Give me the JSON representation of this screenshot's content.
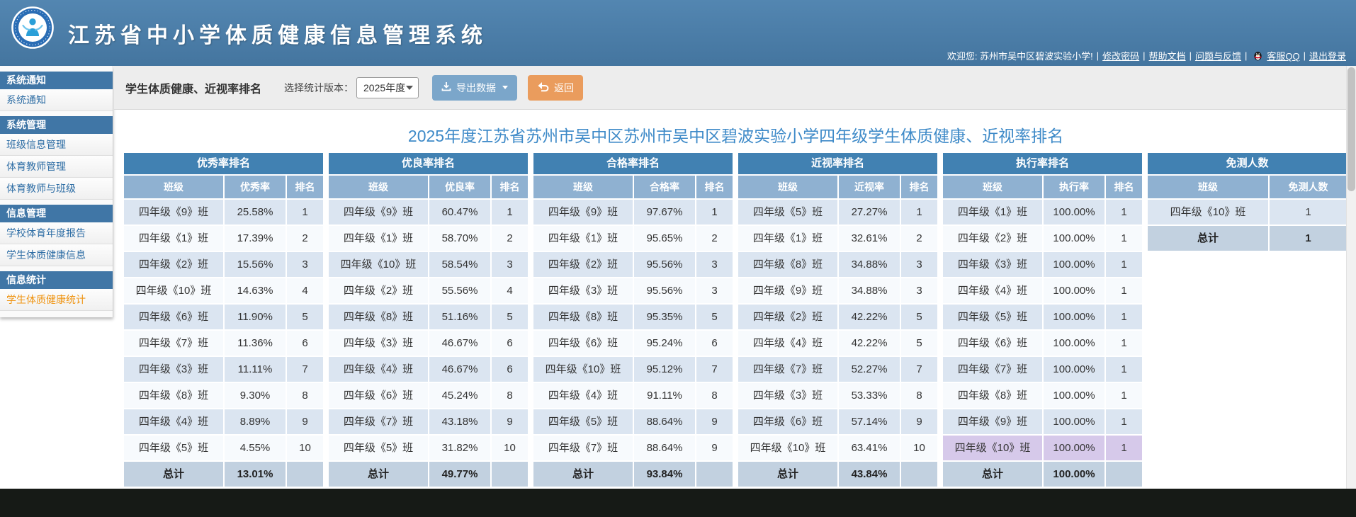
{
  "header": {
    "title": "江苏省中小学体质健康信息管理系统",
    "welcome_prefix": "欢迎您: 苏州市吴中区碧波实验小学!",
    "separator": "|",
    "links": [
      "修改密码",
      "帮助文档",
      "问题与反馈",
      "客服QQ",
      "退出登录"
    ]
  },
  "sidebar": {
    "sections": [
      {
        "header": "系统通知",
        "items": [
          {
            "label": "系统通知",
            "active": false
          }
        ]
      },
      {
        "header": "系统管理",
        "items": [
          {
            "label": "班级信息管理",
            "active": false
          },
          {
            "label": "体育教师管理",
            "active": false
          },
          {
            "label": "体育教师与班级",
            "active": false
          }
        ]
      },
      {
        "header": "信息管理",
        "items": [
          {
            "label": "学校体育年度报告",
            "active": false
          },
          {
            "label": "学生体质健康信息",
            "active": false
          }
        ]
      },
      {
        "header": "信息统计",
        "items": [
          {
            "label": "学生体质健康统计",
            "active": true
          }
        ]
      }
    ]
  },
  "toolbar": {
    "title": "学生体质健康、近视率排名",
    "version_label": "选择统计版本：",
    "version_value": "2025年度",
    "export_label": "导出数据",
    "back_label": "返回"
  },
  "main": {
    "title": "2025年度江苏省苏州市吴中区苏州市吴中区碧波实验小学四年级学生体质健康、近视率排名"
  },
  "tables": [
    {
      "key": "excellent-rate",
      "title": "优秀率排名",
      "columns": [
        "班级",
        "优秀率",
        "排名"
      ],
      "rows": [
        [
          "四年级《9》班",
          "25.58%",
          "1"
        ],
        [
          "四年级《1》班",
          "17.39%",
          "2"
        ],
        [
          "四年级《2》班",
          "15.56%",
          "3"
        ],
        [
          "四年级《10》班",
          "14.63%",
          "4"
        ],
        [
          "四年级《6》班",
          "11.90%",
          "5"
        ],
        [
          "四年级《7》班",
          "11.36%",
          "6"
        ],
        [
          "四年级《3》班",
          "11.11%",
          "7"
        ],
        [
          "四年级《8》班",
          "9.30%",
          "8"
        ],
        [
          "四年级《4》班",
          "8.89%",
          "9"
        ],
        [
          "四年级《5》班",
          "4.55%",
          "10"
        ]
      ],
      "total": [
        "总计",
        "13.01%",
        ""
      ]
    },
    {
      "key": "good-rate",
      "title": "优良率排名",
      "columns": [
        "班级",
        "优良率",
        "排名"
      ],
      "rows": [
        [
          "四年级《9》班",
          "60.47%",
          "1"
        ],
        [
          "四年级《1》班",
          "58.70%",
          "2"
        ],
        [
          "四年级《10》班",
          "58.54%",
          "3"
        ],
        [
          "四年级《2》班",
          "55.56%",
          "4"
        ],
        [
          "四年级《8》班",
          "51.16%",
          "5"
        ],
        [
          "四年级《3》班",
          "46.67%",
          "6"
        ],
        [
          "四年级《4》班",
          "46.67%",
          "6"
        ],
        [
          "四年级《6》班",
          "45.24%",
          "8"
        ],
        [
          "四年级《7》班",
          "43.18%",
          "9"
        ],
        [
          "四年级《5》班",
          "31.82%",
          "10"
        ]
      ],
      "total": [
        "总计",
        "49.77%",
        ""
      ]
    },
    {
      "key": "pass-rate",
      "title": "合格率排名",
      "columns": [
        "班级",
        "合格率",
        "排名"
      ],
      "rows": [
        [
          "四年级《9》班",
          "97.67%",
          "1"
        ],
        [
          "四年级《1》班",
          "95.65%",
          "2"
        ],
        [
          "四年级《2》班",
          "95.56%",
          "3"
        ],
        [
          "四年级《3》班",
          "95.56%",
          "3"
        ],
        [
          "四年级《8》班",
          "95.35%",
          "5"
        ],
        [
          "四年级《6》班",
          "95.24%",
          "6"
        ],
        [
          "四年级《10》班",
          "95.12%",
          "7"
        ],
        [
          "四年级《4》班",
          "91.11%",
          "8"
        ],
        [
          "四年级《5》班",
          "88.64%",
          "9"
        ],
        [
          "四年级《7》班",
          "88.64%",
          "9"
        ]
      ],
      "total": [
        "总计",
        "93.84%",
        ""
      ]
    },
    {
      "key": "myopia-rate",
      "title": "近视率排名",
      "columns": [
        "班级",
        "近视率",
        "排名"
      ],
      "rows": [
        [
          "四年级《5》班",
          "27.27%",
          "1"
        ],
        [
          "四年级《1》班",
          "32.61%",
          "2"
        ],
        [
          "四年级《8》班",
          "34.88%",
          "3"
        ],
        [
          "四年级《9》班",
          "34.88%",
          "3"
        ],
        [
          "四年级《2》班",
          "42.22%",
          "5"
        ],
        [
          "四年级《4》班",
          "42.22%",
          "5"
        ],
        [
          "四年级《7》班",
          "52.27%",
          "7"
        ],
        [
          "四年级《3》班",
          "53.33%",
          "8"
        ],
        [
          "四年级《6》班",
          "57.14%",
          "9"
        ],
        [
          "四年级《10》班",
          "63.41%",
          "10"
        ]
      ],
      "total": [
        "总计",
        "43.84%",
        ""
      ]
    },
    {
      "key": "execution-rate",
      "title": "执行率排名",
      "columns": [
        "班级",
        "执行率",
        "排名"
      ],
      "highlight_row": 9,
      "rows": [
        [
          "四年级《1》班",
          "100.00%",
          "1"
        ],
        [
          "四年级《2》班",
          "100.00%",
          "1"
        ],
        [
          "四年级《3》班",
          "100.00%",
          "1"
        ],
        [
          "四年级《4》班",
          "100.00%",
          "1"
        ],
        [
          "四年级《5》班",
          "100.00%",
          "1"
        ],
        [
          "四年级《6》班",
          "100.00%",
          "1"
        ],
        [
          "四年级《7》班",
          "100.00%",
          "1"
        ],
        [
          "四年级《8》班",
          "100.00%",
          "1"
        ],
        [
          "四年级《9》班",
          "100.00%",
          "1"
        ],
        [
          "四年级《10》班",
          "100.00%",
          "1"
        ]
      ],
      "total": [
        "总计",
        "100.00%",
        ""
      ]
    },
    {
      "key": "exempt-count",
      "title": "免测人数",
      "wide": true,
      "columns": [
        "班级",
        "免测人数"
      ],
      "rows": [
        [
          "四年级《10》班",
          "1"
        ]
      ],
      "total": [
        "总计",
        "1"
      ]
    }
  ],
  "colors": {
    "header_blue": "#4a7ca9",
    "table_header_blue": "#4181b2",
    "column_header_blue": "#8fb1d1",
    "row_blue": "#dbe5f1",
    "total_gray": "#c2d1e0",
    "highlight_purple": "#d6c9ea",
    "active_orange": "#ef9412",
    "export_button": "#7ba6ca",
    "back_button": "#ea9c5d",
    "title_blue": "#3e8ac8"
  }
}
